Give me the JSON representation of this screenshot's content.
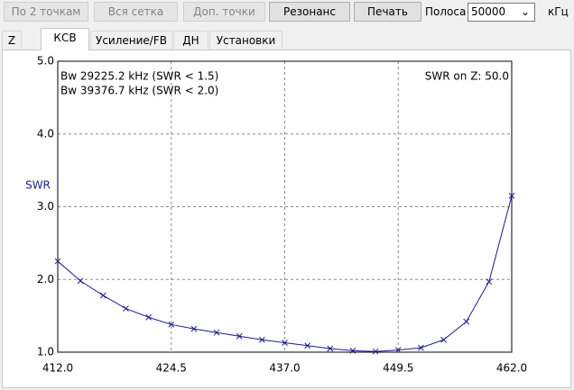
{
  "toolbar": {
    "buttons": [
      "По 2 точкам",
      "Вся сетка",
      "Доп. точки",
      "Резонанс",
      "Печать"
    ],
    "band_label": "Полоса",
    "band_value": "50000",
    "band_unit": "кГц"
  },
  "tabs": [
    "Z",
    "КСВ",
    "Усиление/FB",
    "ДН",
    "Установки"
  ],
  "chart_data": {
    "type": "line",
    "ylabel": "SWR",
    "annotations": [
      "Bw 29225.2 kHz (SWR < 1.5)",
      "Bw 39376.7 kHz (SWR < 2.0)",
      "SWR on Z: 50.0"
    ],
    "x": [
      412,
      414.5,
      417,
      419.5,
      422,
      424.5,
      427,
      429.5,
      432,
      434.5,
      437,
      439.5,
      442,
      444.5,
      447,
      449.5,
      452,
      454.5,
      457,
      459.5,
      462
    ],
    "values": [
      2.25,
      1.98,
      1.78,
      1.6,
      1.48,
      1.38,
      1.32,
      1.27,
      1.22,
      1.17,
      1.13,
      1.09,
      1.05,
      1.02,
      1.01,
      1.03,
      1.06,
      1.17,
      1.42,
      1.97,
      3.15
    ],
    "color": "#1c1c8c",
    "xlim": [
      412,
      462
    ],
    "xticks": [
      {
        "value": 412,
        "label": "412.0"
      },
      {
        "value": 424.5,
        "label": "424.5"
      },
      {
        "value": 437,
        "label": "437.0"
      },
      {
        "value": 449.5,
        "label": "449.5"
      },
      {
        "value": 462,
        "label": "462.0"
      }
    ],
    "ylim": [
      1,
      5
    ],
    "yticks": [
      {
        "value": 1,
        "label": "1.0"
      },
      {
        "value": 2,
        "label": "2.0"
      },
      {
        "value": 3,
        "label": "3.0"
      },
      {
        "value": 4,
        "label": "4.0"
      },
      {
        "value": 5,
        "label": "5.0"
      }
    ],
    "grid": true
  }
}
